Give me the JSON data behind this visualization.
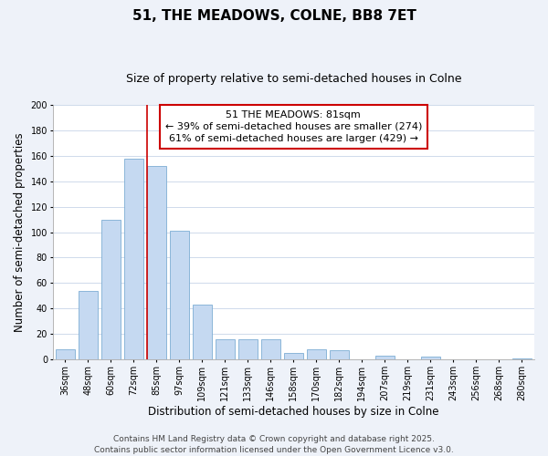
{
  "title": "51, THE MEADOWS, COLNE, BB8 7ET",
  "subtitle": "Size of property relative to semi-detached houses in Colne",
  "xlabel": "Distribution of semi-detached houses by size in Colne",
  "ylabel": "Number of semi-detached properties",
  "categories": [
    "36sqm",
    "48sqm",
    "60sqm",
    "72sqm",
    "85sqm",
    "97sqm",
    "109sqm",
    "121sqm",
    "133sqm",
    "146sqm",
    "158sqm",
    "170sqm",
    "182sqm",
    "194sqm",
    "207sqm",
    "219sqm",
    "231sqm",
    "243sqm",
    "256sqm",
    "268sqm",
    "280sqm"
  ],
  "values": [
    8,
    54,
    110,
    158,
    152,
    101,
    43,
    16,
    16,
    16,
    5,
    8,
    7,
    0,
    3,
    0,
    2,
    0,
    0,
    0,
    1
  ],
  "bar_color": "#c5d9f1",
  "bar_edge_color": "#7dadd4",
  "vline_index": 4,
  "vline_color": "#cc0000",
  "annotation_title": "51 THE MEADOWS: 81sqm",
  "annotation_line1": "← 39% of semi-detached houses are smaller (274)",
  "annotation_line2": "61% of semi-detached houses are larger (429) →",
  "annotation_box_color": "#ffffff",
  "annotation_box_edge": "#cc0000",
  "ylim": [
    0,
    200
  ],
  "yticks": [
    0,
    20,
    40,
    60,
    80,
    100,
    120,
    140,
    160,
    180,
    200
  ],
  "footer_line1": "Contains HM Land Registry data © Crown copyright and database right 2025.",
  "footer_line2": "Contains public sector information licensed under the Open Government Licence v3.0.",
  "bg_color": "#eef2f9",
  "plot_bg_color": "#ffffff",
  "grid_color": "#c8d4e8",
  "title_fontsize": 11,
  "subtitle_fontsize": 9,
  "axis_label_fontsize": 8.5,
  "tick_fontsize": 7,
  "annotation_fontsize": 8,
  "footer_fontsize": 6.5
}
